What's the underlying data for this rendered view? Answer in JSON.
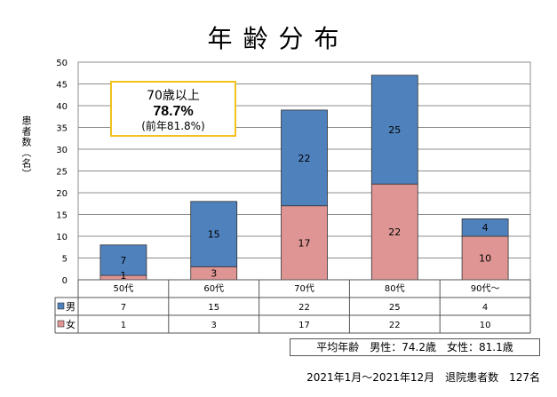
{
  "title": "年齢分布",
  "callout": {
    "line1": "70歳以上",
    "line2": "78.7%",
    "line3": "(前年81.8%)"
  },
  "avg_text": "平均年齢　男性：74.2歳　女性：81.1歳",
  "footer": "2021年1月～2021年12月　退院患者数　127名",
  "chart_data": {
    "type": "bar",
    "stacked": true,
    "categories": [
      "50代",
      "60代",
      "70代",
      "80代",
      "90代～"
    ],
    "series": [
      {
        "name": "女",
        "values": [
          1,
          3,
          17,
          22,
          10
        ],
        "color": "#de9594"
      },
      {
        "name": "男",
        "values": [
          7,
          15,
          22,
          25,
          4
        ],
        "color": "#4f81bd"
      }
    ],
    "ylabel": "患者数（名）",
    "ylim": [
      0,
      50
    ],
    "yticks": [
      0,
      5,
      10,
      15,
      20,
      25,
      30,
      35,
      40,
      45,
      50
    ],
    "grid": true,
    "data_table": true
  }
}
